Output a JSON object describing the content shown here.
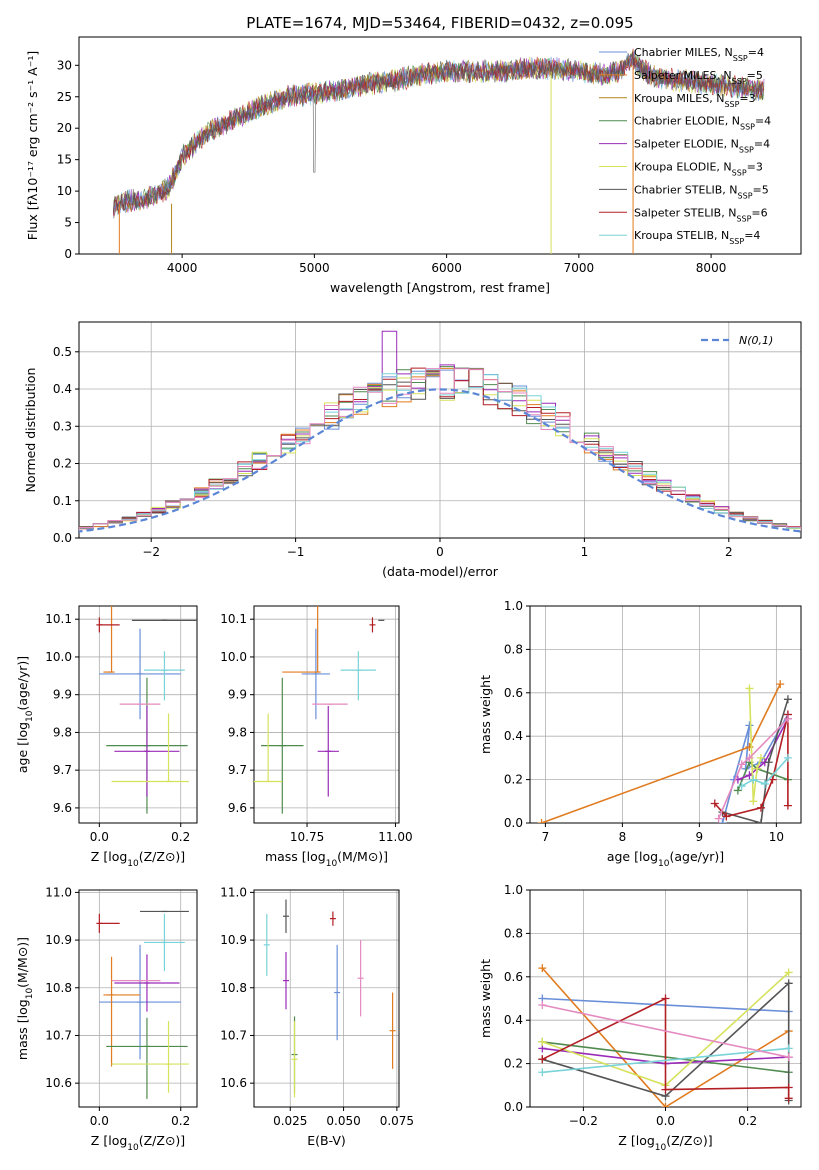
{
  "title": "PLATE=1674, MJD=53464, FIBERID=0432, z=0.095",
  "colors": [
    "#6a8fd8",
    "#e07b1f",
    "#b3861a",
    "#4f8a4f",
    "#9a2cb8",
    "#d6e25c",
    "#555555",
    "#b21f24",
    "#79d3d8",
    "#e58ac0"
  ],
  "chart_data": [
    {
      "type": "line",
      "id": "spectrum",
      "title": "PLATE=1674, MJD=53464, FIBERID=0432, z=0.095",
      "xlabel": "wavelength [Angstrom, rest frame]",
      "ylabel": "Flux [fλ10⁻¹⁷ erg cm⁻² s⁻¹ A⁻¹]",
      "xlim": [
        3220,
        8680
      ],
      "ylim": [
        0,
        34.5
      ],
      "xticks": [
        4000,
        5000,
        6000,
        7000,
        8000
      ],
      "yticks": [
        0,
        5,
        10,
        15,
        20,
        25,
        30
      ],
      "grid": false,
      "legend": "top-right",
      "continuum_x": [
        3480,
        3600,
        3700,
        3900,
        4000,
        4200,
        4400,
        4600,
        4800,
        5000,
        5200,
        5400,
        5600,
        5800,
        6000,
        6200,
        6400,
        6600,
        6800,
        7000,
        7200,
        7300,
        7400,
        7500,
        7600,
        7800,
        8000,
        8200,
        8400
      ],
      "continuum_y": [
        7.5,
        8.5,
        8.5,
        10.5,
        15.5,
        19.5,
        21.5,
        23.5,
        25,
        25.5,
        26,
        27,
        27.5,
        28.5,
        29,
        29,
        29,
        29.5,
        29.5,
        29,
        28.5,
        29,
        31,
        29,
        28,
        27.5,
        27,
        26.5,
        26
      ],
      "series": [
        {
          "name": "Chabrier MILES, N",
          "sub": "SSP",
          "suffix": "=4"
        },
        {
          "name": "Salpeter MILES, N",
          "sub": "SSP",
          "suffix": "=5"
        },
        {
          "name": "Kroupa MILES, N",
          "sub": "SSP",
          "suffix": "=3"
        },
        {
          "name": "Chabrier ELODIE, N",
          "sub": "SSP",
          "suffix": "=4"
        },
        {
          "name": "Salpeter ELODIE, N",
          "sub": "SSP",
          "suffix": "=4"
        },
        {
          "name": "Kroupa ELODIE, N",
          "sub": "SSP",
          "suffix": "=3"
        },
        {
          "name": "Chabrier STELIB, N",
          "sub": "SSP",
          "suffix": "=5"
        },
        {
          "name": "Salpeter STELIB, N",
          "sub": "SSP",
          "suffix": "=6"
        },
        {
          "name": "Kroupa STELIB, N",
          "sub": "SSP",
          "suffix": "=4"
        }
      ]
    },
    {
      "type": "histogram",
      "id": "residuals",
      "xlabel": "(data-model)/error",
      "ylabel": "Normed distribution",
      "xlim": [
        -2.5,
        2.5
      ],
      "ylim": [
        0,
        0.58
      ],
      "xticks": [
        -2,
        -1,
        0,
        1,
        2
      ],
      "yticks": [
        0,
        0.1,
        0.2,
        0.3,
        0.4,
        0.5
      ],
      "grid": true,
      "legend": "top-right",
      "legend_label": "N(0,1)",
      "bin_width": 0.1
    },
    {
      "type": "scatter",
      "id": "age_vs_Z",
      "xlabel": "Z [log10(Z/Z⊙)]",
      "ylabel": "age  [log10(age/yr)]",
      "xlim": [
        -0.05,
        0.24
      ],
      "ylim": [
        9.56,
        10.135
      ],
      "xticks": [
        0.0,
        0.2
      ],
      "yticks": [
        9.6,
        9.7,
        9.8,
        9.9,
        10.0,
        10.1
      ],
      "points": [
        {
          "x": 0.1,
          "y": 9.955,
          "xerr": [
            0.1,
            0.1
          ],
          "yerr": [
            0.12,
            0.12
          ],
          "c": 0
        },
        {
          "x": 0.03,
          "y": 9.96,
          "xerr": [
            0.02,
            0.0
          ],
          "yerr": [
            0.0,
            0.18
          ],
          "c": 1
        },
        {
          "x": 0.117,
          "y": 9.765,
          "xerr": [
            0.1,
            0.1
          ],
          "yerr": [
            0.18,
            0.18
          ],
          "c": 3
        },
        {
          "x": 0.117,
          "y": 9.75,
          "xerr": [
            0.08,
            0.08
          ],
          "yerr": [
            0.12,
            0.12
          ],
          "c": 4
        },
        {
          "x": 0.17,
          "y": 9.67,
          "xerr": [
            0.14,
            0.05
          ],
          "yerr": [
            0.0,
            0.18
          ],
          "c": 5
        },
        {
          "x": 0.16,
          "y": 10.097,
          "xerr": [
            0.08,
            0.08
          ],
          "yerr": [
            0.0,
            0.0
          ],
          "c": 6
        },
        {
          "x": 0.0,
          "y": 10.085,
          "xerr": [
            0.0,
            0.05
          ],
          "yerr": [
            0.02,
            0.02
          ],
          "c": 7
        },
        {
          "x": 0.16,
          "y": 9.965,
          "xerr": [
            0.05,
            0.05
          ],
          "yerr": [
            0.08,
            0.05
          ],
          "c": 8
        },
        {
          "x": 0.1,
          "y": 9.875,
          "xerr": [
            0.05,
            0.05
          ],
          "yerr": [
            0.0,
            0.0
          ],
          "c": 9
        }
      ]
    },
    {
      "type": "scatter",
      "id": "age_vs_mass",
      "xlabel": "mass [log10(M/M⊙)]",
      "ylabel": "",
      "xlim": [
        10.6,
        11.01
      ],
      "ylim": [
        9.56,
        10.135
      ],
      "xticks": [
        10.75,
        11.0
      ],
      "xticklabels": [
        "10.75",
        "11.00"
      ],
      "yticks": [
        9.6,
        9.7,
        9.8,
        9.9,
        10.0,
        10.1
      ],
      "points": [
        {
          "x": 10.775,
          "y": 9.955,
          "xerr": [
            0.04,
            0.04
          ],
          "yerr": [
            0.12,
            0.12
          ],
          "c": 0
        },
        {
          "x": 10.78,
          "y": 9.96,
          "xerr": [
            0.1,
            0.0
          ],
          "yerr": [
            0.0,
            0.18
          ],
          "c": 1
        },
        {
          "x": 10.68,
          "y": 9.765,
          "xerr": [
            0.06,
            0.06
          ],
          "yerr": [
            0.18,
            0.18
          ],
          "c": 3
        },
        {
          "x": 10.81,
          "y": 9.75,
          "xerr": [
            0.03,
            0.03
          ],
          "yerr": [
            0.12,
            0.12
          ],
          "c": 4
        },
        {
          "x": 10.64,
          "y": 9.67,
          "xerr": [
            0.04,
            0.04
          ],
          "yerr": [
            0.0,
            0.18
          ],
          "c": 5
        },
        {
          "x": 10.96,
          "y": 10.097,
          "xerr": [
            0.0,
            0.0
          ],
          "yerr": [
            0.0,
            0.0
          ],
          "c": 6
        },
        {
          "x": 10.935,
          "y": 10.085,
          "xerr": [
            0.0,
            0.0
          ],
          "yerr": [
            0.02,
            0.02
          ],
          "c": 7
        },
        {
          "x": 10.895,
          "y": 9.965,
          "xerr": [
            0.05,
            0.05
          ],
          "yerr": [
            0.08,
            0.05
          ],
          "c": 8
        },
        {
          "x": 10.815,
          "y": 9.875,
          "xerr": [
            0.05,
            0.05
          ],
          "yerr": [
            0.0,
            0.0
          ],
          "c": 9
        }
      ]
    },
    {
      "type": "line",
      "id": "massweight_vs_age",
      "xlabel": "age  [log10(age/yr)]",
      "ylabel": "mass weight",
      "xlim": [
        6.8,
        10.32
      ],
      "ylim": [
        0,
        1.0
      ],
      "xticks": [
        7,
        8,
        9,
        10
      ],
      "yticks": [
        0,
        0.2,
        0.4,
        0.6,
        0.8,
        1.0
      ],
      "grid": true,
      "series": [
        {
          "c": 0,
          "x": [
            9.3,
            9.45,
            9.65,
            9.6,
            9.8,
            10.15
          ],
          "y": [
            0.0,
            0.2,
            0.45,
            0.25,
            0.28,
            0.5
          ]
        },
        {
          "c": 1,
          "x": [
            6.95,
            9.65,
            10.05
          ],
          "y": [
            0.0,
            0.35,
            0.64
          ]
        },
        {
          "c": 3,
          "x": [
            9.5,
            9.65,
            9.75,
            10.15
          ],
          "y": [
            0.15,
            0.28,
            0.25,
            0.2
          ]
        },
        {
          "c": 4,
          "x": [
            9.5,
            9.65,
            9.85,
            10.15
          ],
          "y": [
            0.2,
            0.22,
            0.28,
            0.48
          ]
        },
        {
          "c": 5,
          "x": [
            9.65,
            9.7,
            9.75,
            9.8
          ],
          "y": [
            0.62,
            0.1,
            0.25,
            0.3
          ]
        },
        {
          "c": 6,
          "x": [
            9.3,
            9.8,
            9.9,
            10.15
          ],
          "y": [
            0.05,
            0.0,
            0.28,
            0.57
          ]
        },
        {
          "c": 7,
          "x": [
            9.2,
            9.35,
            9.8,
            9.95,
            10.15,
            10.15
          ],
          "y": [
            0.09,
            0.03,
            0.07,
            0.2,
            0.5,
            0.08
          ]
        },
        {
          "c": 8,
          "x": [
            9.55,
            9.7,
            9.85,
            10.15
          ],
          "y": [
            0.17,
            0.2,
            0.18,
            0.3
          ]
        },
        {
          "c": 9,
          "x": [
            9.25,
            9.55,
            9.65,
            10.15
          ],
          "y": [
            0.02,
            0.27,
            0.3,
            0.48
          ]
        }
      ]
    },
    {
      "type": "scatter",
      "id": "mass_vs_Z",
      "xlabel": "Z [log10(Z/Z⊙)]",
      "ylabel": "mass [log10(M/M⊙)]",
      "xlim": [
        -0.05,
        0.24
      ],
      "ylim": [
        10.55,
        11.005
      ],
      "xticks": [
        0.0,
        0.2
      ],
      "yticks": [
        10.6,
        10.7,
        10.8,
        10.9,
        11.0
      ],
      "points": [
        {
          "x": 0.1,
          "y": 10.77,
          "xerr": [
            0.1,
            0.1
          ],
          "yerr": [
            0.12,
            0.12
          ],
          "c": 0
        },
        {
          "x": 0.03,
          "y": 10.785,
          "xerr": [
            0.02,
            0.07
          ],
          "yerr": [
            0.15,
            0.08
          ],
          "c": 1
        },
        {
          "x": 0.117,
          "y": 10.677,
          "xerr": [
            0.1,
            0.1
          ],
          "yerr": [
            0.11,
            0.06
          ],
          "c": 3
        },
        {
          "x": 0.117,
          "y": 10.81,
          "xerr": [
            0.08,
            0.08
          ],
          "yerr": [
            0.06,
            0.06
          ],
          "c": 4
        },
        {
          "x": 0.17,
          "y": 10.64,
          "xerr": [
            0.14,
            0.05
          ],
          "yerr": [
            0.06,
            0.09
          ],
          "c": 5
        },
        {
          "x": 0.16,
          "y": 10.96,
          "xerr": [
            0.06,
            0.06
          ],
          "yerr": [
            0.0,
            0.0
          ],
          "c": 6
        },
        {
          "x": 0.0,
          "y": 10.935,
          "xerr": [
            0.0,
            0.05
          ],
          "yerr": [
            0.02,
            0.02
          ],
          "c": 7
        },
        {
          "x": 0.16,
          "y": 10.895,
          "xerr": [
            0.05,
            0.05
          ],
          "yerr": [
            0.06,
            0.06
          ],
          "c": 8
        },
        {
          "x": 0.1,
          "y": 10.815,
          "xerr": [
            0.07,
            0.05
          ],
          "yerr": [
            0.0,
            0.0
          ],
          "c": 9
        }
      ]
    },
    {
      "type": "scatter",
      "id": "mass_vs_EBV",
      "xlabel": "E(B-V)",
      "ylabel": "",
      "xlim": [
        0.008,
        0.076
      ],
      "ylim": [
        10.55,
        11.005
      ],
      "xticks": [
        0.025,
        0.05,
        0.075
      ],
      "xticklabels": [
        "0.025",
        "0.050",
        "0.075"
      ],
      "yticks": [
        10.6,
        10.7,
        10.8,
        10.9,
        11.0
      ],
      "points": [
        {
          "x": 0.047,
          "y": 10.79,
          "xerr": [
            0,
            0
          ],
          "yerr": [
            0.1,
            0.1
          ],
          "c": 0
        },
        {
          "x": 0.073,
          "y": 10.71,
          "xerr": [
            0,
            0
          ],
          "yerr": [
            0.08,
            0.08
          ],
          "c": 1
        },
        {
          "x": 0.027,
          "y": 10.66,
          "xerr": [
            0,
            0
          ],
          "yerr": [
            0.08,
            0.08
          ],
          "c": 3
        },
        {
          "x": 0.023,
          "y": 10.815,
          "xerr": [
            0,
            0
          ],
          "yerr": [
            0.06,
            0.06
          ],
          "c": 4
        },
        {
          "x": 0.027,
          "y": 10.65,
          "xerr": [
            0,
            0
          ],
          "yerr": [
            0.08,
            0.08
          ],
          "c": 5
        },
        {
          "x": 0.023,
          "y": 10.95,
          "xerr": [
            0,
            0
          ],
          "yerr": [
            0.035,
            0.035
          ],
          "c": 6
        },
        {
          "x": 0.045,
          "y": 10.945,
          "xerr": [
            0,
            0
          ],
          "yerr": [
            0.015,
            0.015
          ],
          "c": 7
        },
        {
          "x": 0.014,
          "y": 10.89,
          "xerr": [
            0,
            0
          ],
          "yerr": [
            0.065,
            0.065
          ],
          "c": 8
        },
        {
          "x": 0.058,
          "y": 10.82,
          "xerr": [
            0,
            0
          ],
          "yerr": [
            0.08,
            0.08
          ],
          "c": 9
        }
      ]
    },
    {
      "type": "line",
      "id": "massweight_vs_Z",
      "xlabel": "Z [log10(Z/Z⊙)]",
      "ylabel": "mass weight",
      "xlim": [
        -0.33,
        0.33
      ],
      "ylim": [
        0,
        1.0
      ],
      "xticks": [
        -0.2,
        0.0,
        0.2
      ],
      "yticks": [
        0,
        0.2,
        0.4,
        0.6,
        0.8,
        1.0
      ],
      "grid": true,
      "series": [
        {
          "c": 0,
          "x": [
            -0.3,
            0.3
          ],
          "y": [
            0.5,
            0.44
          ]
        },
        {
          "c": 1,
          "x": [
            -0.3,
            0.0,
            0.3
          ],
          "y": [
            0.64,
            0.0,
            0.35
          ]
        },
        {
          "c": 3,
          "x": [
            -0.3,
            0.3
          ],
          "y": [
            0.3,
            0.16
          ]
        },
        {
          "c": 4,
          "x": [
            -0.3,
            0.0,
            0.3
          ],
          "y": [
            0.27,
            0.2,
            0.23
          ]
        },
        {
          "c": 5,
          "x": [
            -0.3,
            0.0,
            0.3
          ],
          "y": [
            0.3,
            0.1,
            0.62
          ]
        },
        {
          "c": 6,
          "x": [
            -0.3,
            0.0,
            0.3,
            0.3
          ],
          "y": [
            0.22,
            0.05,
            0.57,
            0.03
          ]
        },
        {
          "c": 7,
          "x": [
            -0.3,
            0.0,
            0.0,
            0.3,
            0.3
          ],
          "y": [
            0.22,
            0.5,
            0.08,
            0.09,
            0.04
          ]
        },
        {
          "c": 8,
          "x": [
            -0.3,
            0.3
          ],
          "y": [
            0.16,
            0.27
          ]
        },
        {
          "c": 9,
          "x": [
            -0.3,
            0.3
          ],
          "y": [
            0.47,
            0.23
          ]
        }
      ]
    }
  ]
}
